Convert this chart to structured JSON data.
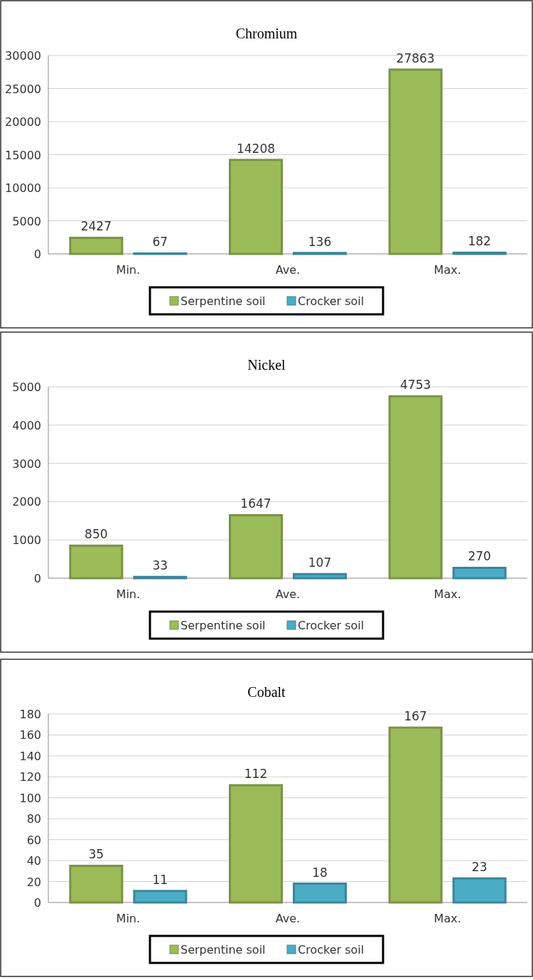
{
  "chart_data": [
    {
      "type": "bar",
      "title": "Chromium",
      "categories": [
        "Min.",
        "Ave.",
        "Max."
      ],
      "series": [
        {
          "name": "Serpentine soil",
          "color": "#9bbb59",
          "values": [
            2427,
            14208,
            27863
          ]
        },
        {
          "name": "Crocker soil",
          "color": "#4bacc6",
          "values": [
            67,
            136,
            182
          ]
        }
      ],
      "ylim": [
        0,
        30000
      ],
      "yticks": [
        0,
        5000,
        10000,
        15000,
        20000,
        25000,
        30000
      ],
      "grid": "y",
      "legend": "bottom",
      "data_labels": true
    },
    {
      "type": "bar",
      "title": "Nickel",
      "categories": [
        "Min.",
        "Ave.",
        "Max."
      ],
      "series": [
        {
          "name": "Serpentine soil",
          "color": "#9bbb59",
          "values": [
            850,
            1647,
            4753
          ]
        },
        {
          "name": "Crocker soil",
          "color": "#4bacc6",
          "values": [
            33,
            107,
            270
          ]
        }
      ],
      "ylim": [
        0,
        5000
      ],
      "yticks": [
        0,
        1000,
        2000,
        3000,
        4000,
        5000
      ],
      "grid": "y",
      "legend": "bottom",
      "data_labels": true
    },
    {
      "type": "bar",
      "title": "Cobalt",
      "categories": [
        "Min.",
        "Ave.",
        "Max."
      ],
      "series": [
        {
          "name": "Serpentine soil",
          "color": "#9bbb59",
          "values": [
            35,
            112,
            167
          ]
        },
        {
          "name": "Crocker soil",
          "color": "#4bacc6",
          "values": [
            11,
            18,
            23
          ]
        }
      ],
      "ylim": [
        0,
        180
      ],
      "yticks": [
        0,
        20,
        40,
        60,
        80,
        100,
        120,
        140,
        160,
        180
      ],
      "grid": "y",
      "legend": "bottom",
      "data_labels": true
    }
  ]
}
